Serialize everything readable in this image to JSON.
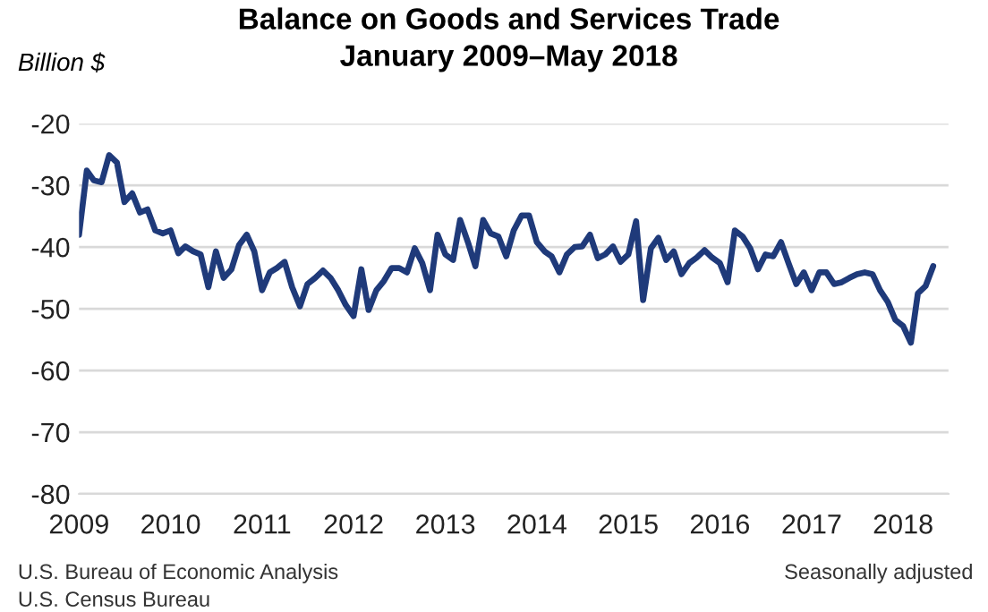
{
  "chart_data": {
    "type": "line",
    "title": "Balance on Goods and Services Trade",
    "subtitle": "January 2009–May 2018",
    "ylabel": "Billion $",
    "x": [
      "2009-01",
      "2009-02",
      "2009-03",
      "2009-04",
      "2009-05",
      "2009-06",
      "2009-07",
      "2009-08",
      "2009-09",
      "2009-10",
      "2009-11",
      "2009-12",
      "2010-01",
      "2010-02",
      "2010-03",
      "2010-04",
      "2010-05",
      "2010-06",
      "2010-07",
      "2010-08",
      "2010-09",
      "2010-10",
      "2010-11",
      "2010-12",
      "2011-01",
      "2011-02",
      "2011-03",
      "2011-04",
      "2011-05",
      "2011-06",
      "2011-07",
      "2011-08",
      "2011-09",
      "2011-10",
      "2011-11",
      "2011-12",
      "2012-01",
      "2012-02",
      "2012-03",
      "2012-04",
      "2012-05",
      "2012-06",
      "2012-07",
      "2012-08",
      "2012-09",
      "2012-10",
      "2012-11",
      "2012-12",
      "2013-01",
      "2013-02",
      "2013-03",
      "2013-04",
      "2013-05",
      "2013-06",
      "2013-07",
      "2013-08",
      "2013-09",
      "2013-10",
      "2013-11",
      "2013-12",
      "2014-01",
      "2014-02",
      "2014-03",
      "2014-04",
      "2014-05",
      "2014-06",
      "2014-07",
      "2014-08",
      "2014-09",
      "2014-10",
      "2014-11",
      "2014-12",
      "2015-01",
      "2015-02",
      "2015-03",
      "2015-04",
      "2015-05",
      "2015-06",
      "2015-07",
      "2015-08",
      "2015-09",
      "2015-10",
      "2015-11",
      "2015-12",
      "2016-01",
      "2016-02",
      "2016-03",
      "2016-04",
      "2016-05",
      "2016-06",
      "2016-07",
      "2016-08",
      "2016-09",
      "2016-10",
      "2016-11",
      "2016-12",
      "2017-01",
      "2017-02",
      "2017-03",
      "2017-04",
      "2017-05",
      "2017-06",
      "2017-07",
      "2017-08",
      "2017-09",
      "2017-10",
      "2017-11",
      "2017-12",
      "2018-01",
      "2018-02",
      "2018-03",
      "2018-04",
      "2018-05"
    ],
    "series": [
      {
        "color": "#1f3a7a",
        "values": [
          -38,
          -27.6,
          -29.2,
          -29.5,
          -25.1,
          -26.3,
          -32.7,
          -31.3,
          -34.4,
          -33.9,
          -37.3,
          -37.8,
          -37.3,
          -41,
          -39.9,
          -40.7,
          -41.2,
          -46.5,
          -40.7,
          -45,
          -43.6,
          -39.7,
          -38,
          -40.7,
          -47,
          -44.1,
          -43.4,
          -42.4,
          -46.5,
          -49.6,
          -46,
          -45,
          -43.8,
          -45,
          -47,
          -49.4,
          -51.2,
          -43.6,
          -50.2,
          -47,
          -45.5,
          -43.4,
          -43.4,
          -44.1,
          -40.2,
          -42.6,
          -47,
          -38,
          -41.2,
          -42.1,
          -35.6,
          -39.2,
          -43.1,
          -35.6,
          -37.8,
          -38.3,
          -41.5,
          -37.3,
          -34.9,
          -34.9,
          -39.2,
          -40.7,
          -41.5,
          -44.1,
          -41.2,
          -40,
          -39.9,
          -38,
          -41.8,
          -41.2,
          -39.9,
          -42.4,
          -41.2,
          -35.8,
          -48.6,
          -40.2,
          -38.5,
          -42.1,
          -40.7,
          -44.4,
          -42.6,
          -41.7,
          -40.5,
          -41.7,
          -42.6,
          -45.7,
          -37.3,
          -38.3,
          -40.2,
          -43.6,
          -41.2,
          -41.5,
          -39.2,
          -42.6,
          -46,
          -44.1,
          -47,
          -44.1,
          -44.1,
          -46,
          -45.7,
          -45,
          -44.4,
          -44.1,
          -44.4,
          -47,
          -48.9,
          -51.8,
          -52.8,
          -55.5,
          -47.5,
          -46.3,
          -43.1
        ]
      }
    ],
    "xlim": [
      "2009-01",
      "2018-07"
    ],
    "xticks": [
      "2009",
      "2010",
      "2011",
      "2012",
      "2013",
      "2014",
      "2015",
      "2016",
      "2017",
      "2018"
    ],
    "ylim": [
      -80,
      -20
    ],
    "yticks": [
      -80,
      -70,
      -60,
      -50,
      -40,
      -30,
      -20
    ],
    "grid": "y",
    "legend": false,
    "marker": "none",
    "line_style": "solid",
    "annotations": [
      "U.S. Bureau of Economic Analysis",
      "U.S. Census Bureau",
      "Seasonally adjusted"
    ]
  }
}
